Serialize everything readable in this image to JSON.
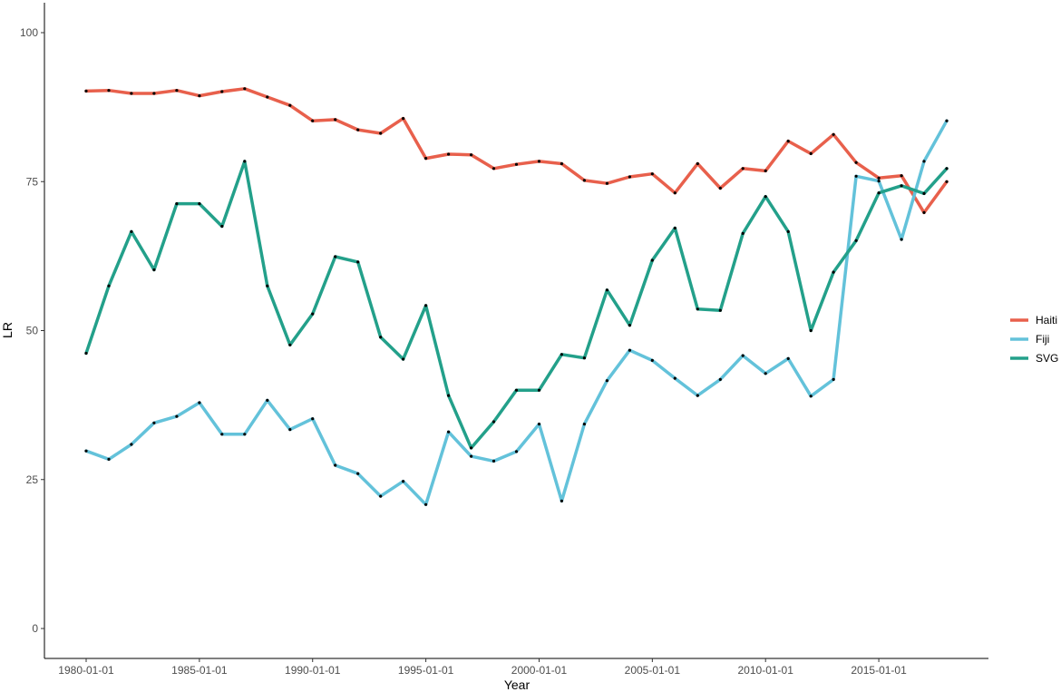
{
  "chart_data": {
    "type": "line",
    "title": "",
    "xlabel": "Year",
    "ylabel": "LR",
    "ylim": [
      0,
      100
    ],
    "yticks": [
      0,
      25,
      50,
      75,
      100
    ],
    "x_start_year": 1980,
    "x_end_year": 2018,
    "xticks": [
      "1980-01-01",
      "1985-01-01",
      "1990-01-01",
      "1995-01-01",
      "2000-01-01",
      "2005-01-01",
      "2010-01-01",
      "2015-01-01"
    ],
    "grid": false,
    "legend_position": "right",
    "x": [
      "1980-01-01",
      "1981-01-01",
      "1982-01-01",
      "1983-01-01",
      "1984-01-01",
      "1985-01-01",
      "1986-01-01",
      "1987-01-01",
      "1988-01-01",
      "1989-01-01",
      "1990-01-01",
      "1991-01-01",
      "1992-01-01",
      "1993-01-01",
      "1994-01-01",
      "1995-01-01",
      "1996-01-01",
      "1997-01-01",
      "1998-01-01",
      "1999-01-01",
      "2000-01-01",
      "2001-01-01",
      "2002-01-01",
      "2003-01-01",
      "2004-01-01",
      "2005-01-01",
      "2006-01-01",
      "2007-01-01",
      "2008-01-01",
      "2009-01-01",
      "2010-01-01",
      "2011-01-01",
      "2012-01-01",
      "2013-01-01",
      "2014-01-01",
      "2015-01-01",
      "2016-01-01",
      "2017-01-01",
      "2018-01-01"
    ],
    "series": [
      {
        "name": "Haiti",
        "color": "#E8604C",
        "values": [
          90.2,
          90.3,
          89.8,
          89.8,
          90.3,
          89.4,
          90.1,
          90.6,
          89.2,
          87.8,
          85.2,
          85.4,
          83.7,
          83.1,
          85.6,
          78.9,
          79.6,
          79.5,
          77.2,
          77.9,
          78.4,
          78.0,
          75.2,
          74.7,
          75.8,
          76.3,
          73.1,
          78.0,
          73.9,
          77.2,
          76.8,
          81.8,
          79.7,
          82.9,
          78.2,
          75.6,
          76.0,
          69.8,
          75.0
        ]
      },
      {
        "name": "Fiji",
        "color": "#63C2DA",
        "values": [
          29.8,
          28.4,
          30.9,
          34.5,
          35.6,
          37.9,
          32.6,
          32.6,
          38.3,
          33.4,
          35.2,
          27.4,
          26.0,
          22.2,
          24.7,
          20.8,
          33.0,
          28.9,
          28.1,
          29.7,
          34.3,
          21.4,
          34.3,
          41.6,
          46.7,
          45.0,
          42.0,
          39.1,
          41.8,
          45.8,
          42.8,
          45.3,
          39.0,
          41.8,
          75.9,
          75.1,
          65.3,
          78.4,
          85.2
        ]
      },
      {
        "name": "SVG",
        "color": "#23A08A",
        "values": [
          46.2,
          57.5,
          66.6,
          60.2,
          71.3,
          71.3,
          67.5,
          78.4,
          57.5,
          47.6,
          52.8,
          62.4,
          61.5,
          48.9,
          45.2,
          54.2,
          39.1,
          30.3,
          34.7,
          40.0,
          40.0,
          46.0,
          45.4,
          56.8,
          50.9,
          61.8,
          67.2,
          53.6,
          53.4,
          66.3,
          72.5,
          66.6,
          50.0,
          59.8,
          65.1,
          73.1,
          74.3,
          73.0,
          77.2
        ]
      }
    ]
  }
}
